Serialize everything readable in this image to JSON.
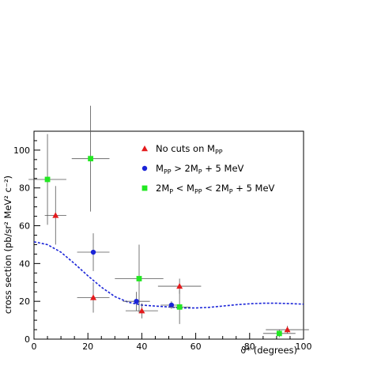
{
  "chart_data": {
    "type": "scatter",
    "xlabel": "ϑ* (degrees)",
    "ylabel": "cross section (pb/sr² MeV² c⁻²)",
    "xlim": [
      0,
      100
    ],
    "ylim": [
      0,
      110
    ],
    "xticks": [
      "0",
      "20",
      "40",
      "60",
      "80",
      "100"
    ],
    "yticks": [
      "0",
      "20",
      "40",
      "60",
      "80",
      "100"
    ],
    "grid": false,
    "legend_position": "top-right",
    "series": [
      {
        "name": "No cuts on M_PP",
        "legend_label": "No cuts on M",
        "legend_sub": "PP",
        "color": "#e41a1c",
        "marker": "triangle",
        "points": [
          {
            "x": 8,
            "y": 65.5,
            "xerr": 4,
            "yerr": 15.5
          },
          {
            "x": 22,
            "y": 22,
            "xerr": 6,
            "yerr": 8
          },
          {
            "x": 40,
            "y": 15,
            "xerr": 6,
            "yerr": 4
          },
          {
            "x": 54,
            "y": 28,
            "xerr": 8,
            "yerr": 4
          },
          {
            "x": 94,
            "y": 5,
            "xerr": 8,
            "yerr": 2
          }
        ]
      },
      {
        "name": "M_PP > 2M_P + 5 MeV",
        "legend_label": "M",
        "legend_sub": "PP",
        "legend_rest": " > 2M",
        "legend_sub2": "P",
        "legend_tail": " + 5 MeV",
        "color": "#1a24d8",
        "marker": "circle",
        "points": [
          {
            "x": 22,
            "y": 46,
            "xerr": 6,
            "yerr": 10
          },
          {
            "x": 38,
            "y": 20,
            "xerr": 5,
            "yerr": 5
          },
          {
            "x": 51,
            "y": 18,
            "xerr": 4,
            "yerr": 2
          }
        ]
      },
      {
        "name": "2M_P < M_PP < 2M_P + 5 MeV",
        "legend_label": "2M",
        "legend_sub": "P",
        "legend_rest": " < M",
        "legend_sub2": "PP",
        "legend_tail": " < 2M",
        "legend_sub3": "P",
        "legend_tail2": " + 5 MeV",
        "color": "#22e822",
        "marker": "square",
        "points": [
          {
            "x": 5,
            "y": 84.5,
            "xerr": 7,
            "yerr": 24
          },
          {
            "x": 21,
            "y": 95.5,
            "xerr": 7,
            "yerr": 28
          },
          {
            "x": 39,
            "y": 32,
            "xerr": 9,
            "yerr": 18
          },
          {
            "x": 54,
            "y": 17,
            "xerr": 4,
            "yerr": 9
          },
          {
            "x": 91,
            "y": 3,
            "xerr": 6,
            "yerr": 2
          }
        ]
      },
      {
        "name": "model curve",
        "color": "#1a24d8",
        "style": "dashed-line",
        "points": [
          {
            "x": 0,
            "y": 51.5
          },
          {
            "x": 5,
            "y": 50
          },
          {
            "x": 10,
            "y": 46
          },
          {
            "x": 15,
            "y": 40
          },
          {
            "x": 20,
            "y": 33.5
          },
          {
            "x": 25,
            "y": 27.5
          },
          {
            "x": 30,
            "y": 22.5
          },
          {
            "x": 35,
            "y": 19.5
          },
          {
            "x": 40,
            "y": 18
          },
          {
            "x": 45,
            "y": 17.5
          },
          {
            "x": 50,
            "y": 17
          },
          {
            "x": 55,
            "y": 16.5
          },
          {
            "x": 60,
            "y": 16.5
          },
          {
            "x": 65,
            "y": 16.8
          },
          {
            "x": 70,
            "y": 17.5
          },
          {
            "x": 75,
            "y": 18.2
          },
          {
            "x": 80,
            "y": 18.7
          },
          {
            "x": 85,
            "y": 19
          },
          {
            "x": 90,
            "y": 19
          },
          {
            "x": 95,
            "y": 18.8
          },
          {
            "x": 100,
            "y": 18.5
          }
        ]
      }
    ]
  }
}
